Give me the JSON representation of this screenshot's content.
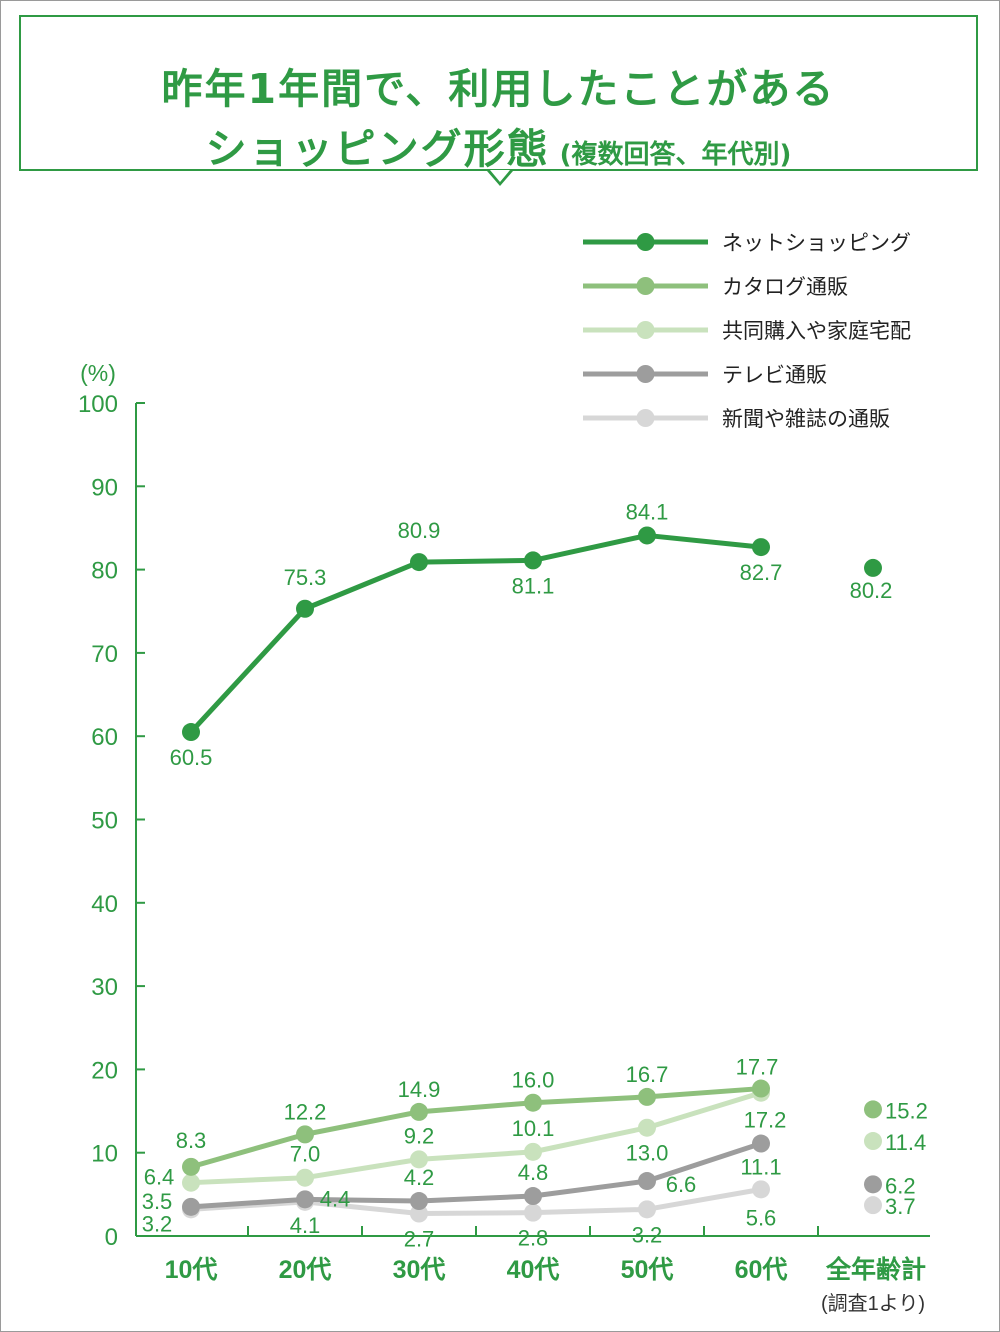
{
  "title": {
    "line1": "昨年1年間で、利用したことがある",
    "line2_main": "ショッピング形態",
    "line2_sub": "(複数回答、年代別)"
  },
  "colors": {
    "frame": "#9a9a9a",
    "title": "#2f9a44",
    "axis": "#2f9a44"
  },
  "chart_data": {
    "type": "line",
    "y_unit_label": "(%)",
    "ylim": [
      0,
      100
    ],
    "yticks": [
      0,
      10,
      20,
      30,
      40,
      50,
      60,
      70,
      80,
      90,
      100
    ],
    "categories": [
      "10代",
      "20代",
      "30代",
      "40代",
      "50代",
      "60代"
    ],
    "total_category": "全年齢計",
    "total_note": "(調査1より)",
    "series": [
      {
        "name": "ネットショッピング",
        "color": "#2f9a44",
        "values": [
          60.5,
          75.3,
          80.9,
          81.1,
          84.1,
          82.7
        ],
        "labels": [
          "60.5",
          "75.3",
          "80.9",
          "81.1",
          "84.1",
          "82.7"
        ],
        "total": 80.2,
        "total_label": "80.2"
      },
      {
        "name": "カタログ通販",
        "color": "#8ec07c",
        "values": [
          8.3,
          12.2,
          14.9,
          16.0,
          16.7,
          17.7
        ],
        "labels": [
          "8.3",
          "12.2",
          "14.9",
          "16.0",
          "16.7",
          "17.7"
        ],
        "total": 15.2,
        "total_label": "15.2"
      },
      {
        "name": "共同購入や家庭宅配",
        "color": "#c9e2bd",
        "values": [
          6.4,
          7.0,
          9.2,
          10.1,
          13.0,
          17.2
        ],
        "labels": [
          "6.4",
          "7.0",
          "9.2",
          "10.1",
          "13.0",
          "17.2"
        ],
        "total": 11.4,
        "total_label": "11.4"
      },
      {
        "name": "テレビ通販",
        "color": "#9d9d9d",
        "values": [
          3.5,
          4.4,
          4.2,
          4.8,
          6.6,
          11.1
        ],
        "labels": [
          "3.5",
          "4.4",
          "4.2",
          "4.8",
          "6.6",
          "11.1"
        ],
        "total": 6.2,
        "total_label": "6.2"
      },
      {
        "name": "新聞や雑誌の通販",
        "color": "#d7d7d7",
        "values": [
          3.2,
          4.1,
          2.7,
          2.8,
          3.2,
          5.6
        ],
        "labels": [
          "3.2",
          "4.1",
          "2.7",
          "2.8",
          "3.2",
          "5.6"
        ],
        "total": 3.7,
        "total_label": "3.7"
      }
    ]
  }
}
